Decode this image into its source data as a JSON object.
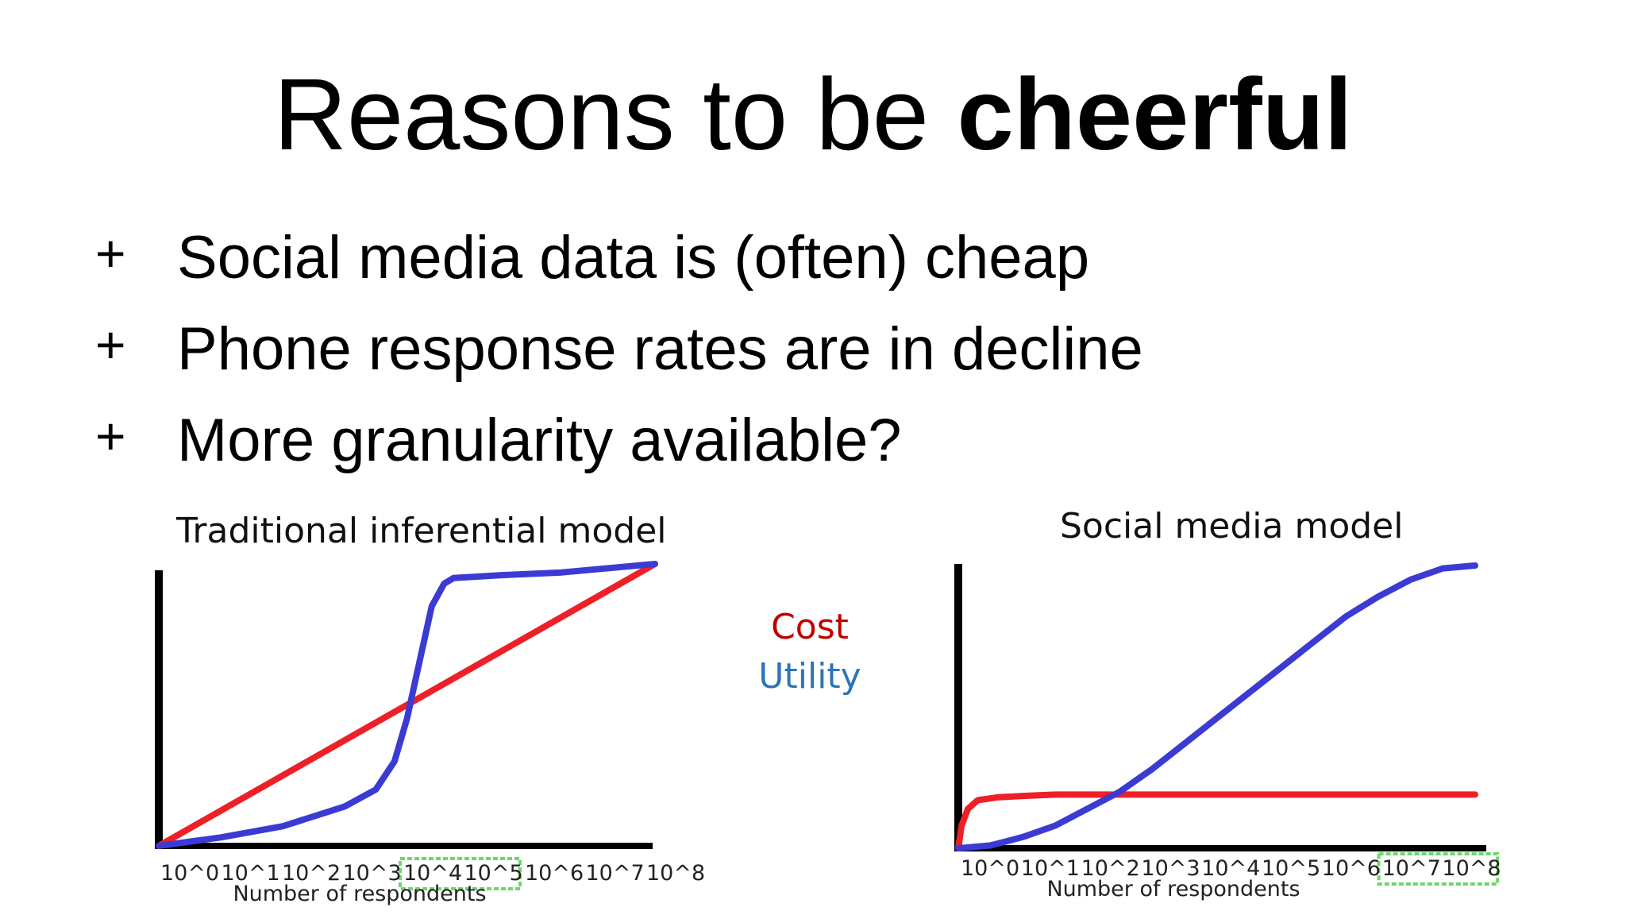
{
  "slide": {
    "title_regular": "Reasons to be ",
    "title_bold": "cheerful",
    "bullets": [
      {
        "mark": "+",
        "text": "Social media data is (often) cheap"
      },
      {
        "mark": "+",
        "text": "Phone response rates are in decline"
      },
      {
        "mark": "+",
        "text": "More granularity available?"
      }
    ]
  },
  "legend": [
    {
      "label": "Cost",
      "color": "#c00000"
    },
    {
      "label": "Utility",
      "color": "#2e75b6"
    }
  ],
  "colors": {
    "cost_line": "#ee2027",
    "utility_line": "#3b3bd4",
    "axis": "#000000",
    "highlight_box": "#6ad86a"
  },
  "chart_data": [
    {
      "type": "line",
      "title": "Traditional inferential model",
      "xlabel": "Number of respondents",
      "ylabel": "",
      "x_ticks": [
        "10^0",
        "10^1",
        "10^2",
        "10^3",
        "10^4",
        "10^5",
        "10^6",
        "10^7",
        "10^8"
      ],
      "highlight_range": [
        "10^4",
        "10^5"
      ],
      "xlim": [
        0,
        8
      ],
      "ylim": [
        0,
        1
      ],
      "grid": false,
      "series": [
        {
          "role": "cost",
          "x": [
            0,
            8
          ],
          "y": [
            0,
            1
          ]
        },
        {
          "role": "utility",
          "x": [
            0,
            1,
            2,
            3,
            3.5,
            3.8,
            4.0,
            4.2,
            4.4,
            4.6,
            4.75,
            5.5,
            6.5,
            8
          ],
          "y": [
            0,
            0.03,
            0.07,
            0.14,
            0.2,
            0.3,
            0.45,
            0.65,
            0.85,
            0.93,
            0.95,
            0.96,
            0.97,
            1.0
          ]
        }
      ]
    },
    {
      "type": "line",
      "title": "Social media model",
      "xlabel": "Number of respondents",
      "ylabel": "",
      "x_ticks": [
        "10^0",
        "10^1",
        "10^2",
        "10^3",
        "10^4",
        "10^5",
        "10^6",
        "10^7",
        "10^8"
      ],
      "highlight_range": [
        "10^7",
        "10^8"
      ],
      "xlim": [
        0,
        8
      ],
      "ylim": [
        0,
        1
      ],
      "grid": false,
      "series": [
        {
          "role": "cost",
          "x": [
            0,
            0.05,
            0.15,
            0.3,
            0.6,
            1.0,
            1.5,
            2.5,
            4,
            6,
            8
          ],
          "y": [
            0,
            0.08,
            0.14,
            0.17,
            0.18,
            0.185,
            0.19,
            0.19,
            0.19,
            0.19,
            0.19
          ]
        },
        {
          "role": "utility",
          "x": [
            0,
            0.5,
            1,
            1.5,
            2,
            2.5,
            3,
            3.5,
            4,
            4.5,
            5,
            5.5,
            6,
            6.5,
            7,
            7.5,
            8
          ],
          "y": [
            0,
            0.01,
            0.04,
            0.08,
            0.14,
            0.2,
            0.28,
            0.37,
            0.46,
            0.55,
            0.64,
            0.73,
            0.82,
            0.89,
            0.95,
            0.99,
            1.0
          ]
        }
      ]
    }
  ]
}
